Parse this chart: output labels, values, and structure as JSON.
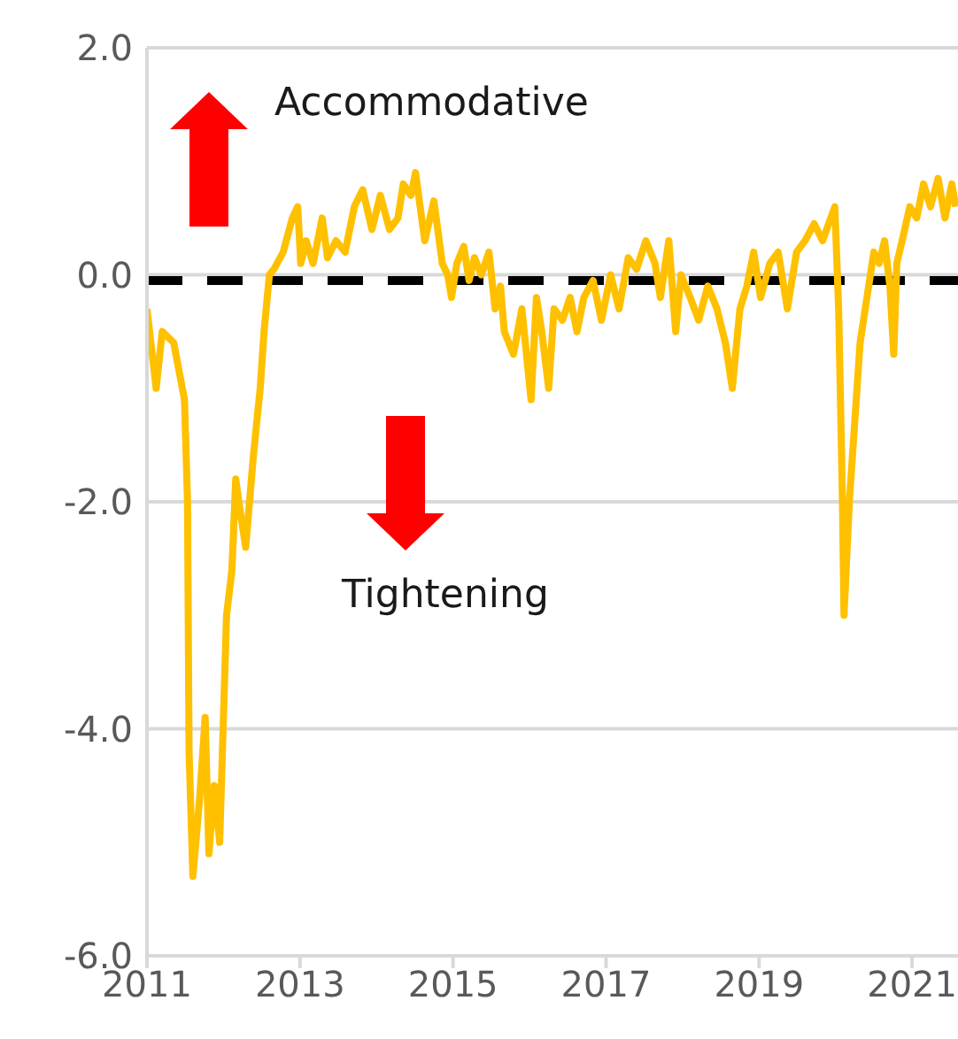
{
  "chart_data": {
    "type": "line",
    "annotations": [
      "Accommodative",
      "Tightening"
    ],
    "x": [
      2011.0,
      2011.12,
      2011.2,
      2011.35,
      2011.49,
      2011.53,
      2011.55,
      2011.6,
      2011.69,
      2011.76,
      2011.81,
      2011.88,
      2011.95,
      2012.04,
      2012.11,
      2012.16,
      2012.2,
      2012.29,
      2012.39,
      2012.48,
      2012.53,
      2012.6,
      2012.66,
      2012.78,
      2012.9,
      2012.97,
      2013.01,
      2013.08,
      2013.17,
      2013.29,
      2013.36,
      2013.47,
      2013.59,
      2013.71,
      2013.82,
      2013.94,
      2014.05,
      2014.17,
      2014.28,
      2014.35,
      2014.45,
      2014.51,
      2014.63,
      2014.75,
      2014.86,
      2014.93,
      2014.98,
      2015.05,
      2015.14,
      2015.21,
      2015.28,
      2015.37,
      2015.47,
      2015.55,
      2015.62,
      2015.67,
      2015.79,
      2015.9,
      2016.02,
      2016.09,
      2016.16,
      2016.25,
      2016.32,
      2016.43,
      2016.53,
      2016.62,
      2016.71,
      2016.83,
      2016.94,
      2017.06,
      2017.17,
      2017.29,
      2017.4,
      2017.52,
      2017.64,
      2017.71,
      2017.82,
      2017.91,
      2017.98,
      2018.1,
      2018.21,
      2018.33,
      2018.45,
      2018.56,
      2018.65,
      2018.75,
      2018.84,
      2018.93,
      2019.02,
      2019.14,
      2019.25,
      2019.37,
      2019.49,
      2019.6,
      2019.72,
      2019.83,
      2019.99,
      2020.04,
      2020.09,
      2020.11,
      2020.18,
      2020.25,
      2020.32,
      2020.41,
      2020.5,
      2020.57,
      2020.64,
      2020.71,
      2020.76,
      2020.8,
      2020.87,
      2020.97,
      2021.06,
      2021.15,
      2021.24,
      2021.34,
      2021.43,
      2021.52,
      2021.57
    ],
    "series": [
      {
        "color": "#ffc000",
        "values": [
          -0.3,
          -1.0,
          -0.5,
          -0.6,
          -1.1,
          -2.0,
          -4.2,
          -5.3,
          -4.6,
          -3.9,
          -5.1,
          -4.5,
          -5.0,
          -3.0,
          -2.6,
          -1.8,
          -2.0,
          -2.4,
          -1.6,
          -1.0,
          -0.5,
          0.0,
          0.05,
          0.2,
          0.5,
          0.6,
          0.1,
          0.3,
          0.1,
          0.5,
          0.15,
          0.3,
          0.2,
          0.6,
          0.75,
          0.4,
          0.7,
          0.4,
          0.5,
          0.8,
          0.7,
          0.9,
          0.3,
          0.65,
          0.1,
          0.0,
          -0.2,
          0.1,
          0.25,
          -0.05,
          0.15,
          0.0,
          0.2,
          -0.3,
          -0.1,
          -0.5,
          -0.7,
          -0.3,
          -1.1,
          -0.2,
          -0.5,
          -1.0,
          -0.3,
          -0.4,
          -0.2,
          -0.5,
          -0.2,
          -0.05,
          -0.4,
          0.0,
          -0.3,
          0.15,
          0.05,
          0.3,
          0.1,
          -0.2,
          0.3,
          -0.5,
          0.0,
          -0.2,
          -0.4,
          -0.1,
          -0.3,
          -0.6,
          -1.0,
          -0.3,
          -0.1,
          0.2,
          -0.2,
          0.1,
          0.2,
          -0.3,
          0.2,
          0.3,
          0.45,
          0.3,
          0.6,
          -0.3,
          -2.0,
          -3.0,
          -2.0,
          -1.3,
          -0.6,
          -0.2,
          0.2,
          0.1,
          0.3,
          -0.1,
          -0.7,
          0.1,
          0.3,
          0.6,
          0.5,
          0.8,
          0.6,
          0.85,
          0.5,
          0.8,
          0.6
        ]
      }
    ],
    "xlim": [
      2011,
      2021.6
    ],
    "xticks": [
      2011,
      2013,
      2015,
      2017,
      2019,
      2021
    ],
    "ylim": [
      -6,
      2
    ],
    "yticks": [
      {
        "value": -6,
        "label": "-6.0"
      },
      {
        "value": -4,
        "label": "-4.0"
      },
      {
        "value": -2,
        "label": "-2.0"
      },
      {
        "value": 0,
        "label": "0.0"
      },
      {
        "value": 2,
        "label": "2.0"
      }
    ],
    "ref_lines": [
      {
        "axis": "y",
        "value": -0.05,
        "color": "#000000",
        "line_style": "dashed"
      }
    ],
    "grid": "y",
    "marker": "none",
    "line_style": "solid"
  }
}
